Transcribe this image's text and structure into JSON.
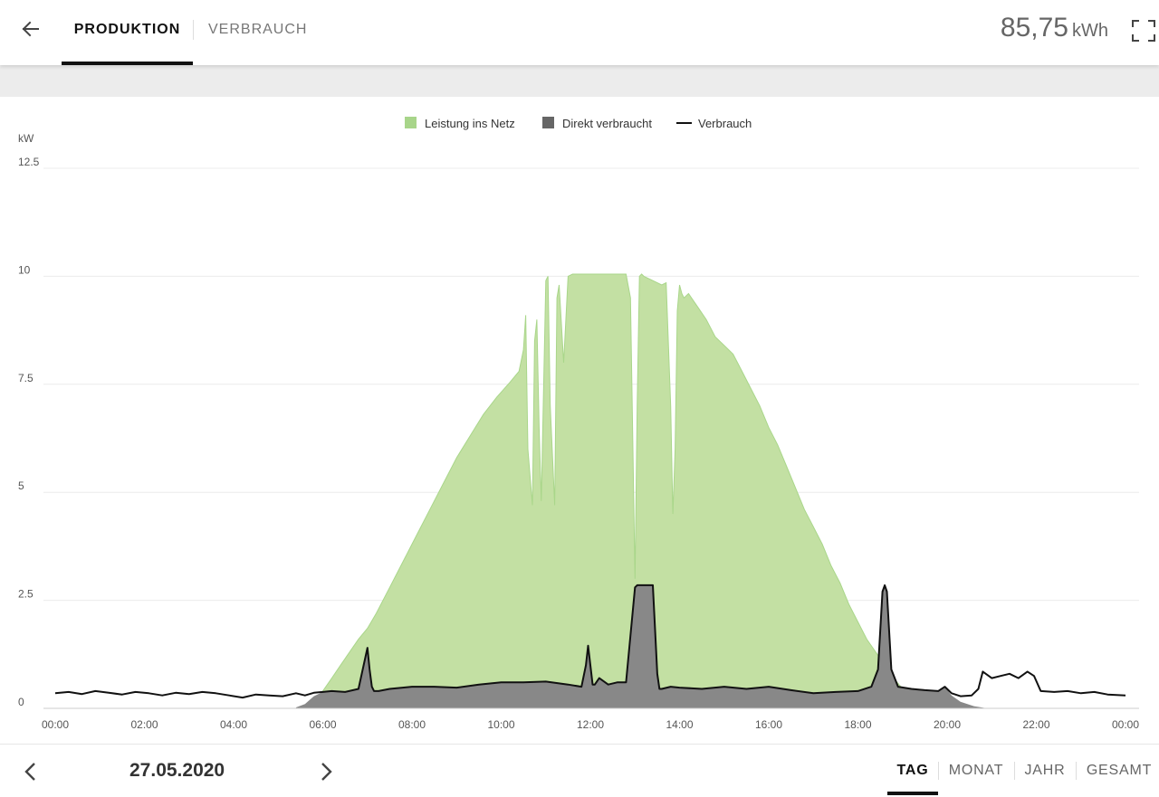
{
  "header": {
    "tabs": [
      {
        "label": "PRODUKTION",
        "active": true
      },
      {
        "label": "VERBRAUCH",
        "active": false
      }
    ],
    "total_value": "85,75",
    "total_unit": "kWh",
    "icons": {
      "back": "arrow-left-icon",
      "fullscreen": "fullscreen-icon"
    }
  },
  "footer": {
    "date": "27.05.2020",
    "period_tabs": [
      {
        "label": "TAG",
        "active": true
      },
      {
        "label": "MONAT",
        "active": false
      },
      {
        "label": "JAHR",
        "active": false
      },
      {
        "label": "GESAMT",
        "active": false
      }
    ],
    "icons": {
      "prev": "chevron-left-icon",
      "next": "chevron-right-icon"
    }
  },
  "colors": {
    "production": "#c3e0a3",
    "production_line": "#a9d68a",
    "direct": "#888888",
    "consumption": "#111111",
    "legend_green": "#a8d58a",
    "legend_grey": "#666666"
  },
  "chart_data": {
    "type": "area",
    "ylabel": "kW",
    "ylim": [
      0,
      12.5
    ],
    "yticks": [
      "0",
      "2.5",
      "5",
      "7.5",
      "10",
      "12.5"
    ],
    "xlim": [
      0,
      24
    ],
    "xticks": [
      "00:00",
      "02:00",
      "04:00",
      "06:00",
      "08:00",
      "10:00",
      "12:00",
      "14:00",
      "16:00",
      "18:00",
      "20:00",
      "22:00",
      "00:00"
    ],
    "legend": [
      "Leistung ins Netz",
      "Direkt verbraucht",
      "Verbrauch"
    ],
    "legend_position": "top-center",
    "grid": true,
    "series": [
      {
        "name": "Leistung ins Netz",
        "style": "area",
        "x": [
          5.9,
          6.0,
          6.2,
          6.4,
          6.6,
          6.8,
          7.0,
          7.2,
          7.5,
          7.8,
          8.1,
          8.4,
          8.7,
          9.0,
          9.3,
          9.6,
          9.9,
          10.2,
          10.4,
          10.5,
          10.55,
          10.6,
          10.7,
          10.75,
          10.8,
          10.85,
          10.9,
          11.0,
          11.05,
          11.1,
          11.2,
          11.25,
          11.3,
          11.4,
          11.5,
          11.6,
          11.7,
          12.0,
          12.5,
          12.8,
          12.9,
          13.0,
          13.05,
          13.1,
          13.15,
          13.2,
          13.4,
          13.6,
          13.7,
          13.8,
          13.85,
          13.9,
          13.95,
          14.0,
          14.05,
          14.1,
          14.2,
          14.4,
          14.6,
          14.8,
          15.0,
          15.2,
          15.4,
          15.6,
          15.8,
          16.0,
          16.2,
          16.4,
          16.6,
          16.8,
          17.0,
          17.2,
          17.4,
          17.6,
          17.8,
          18.0,
          18.2,
          18.4,
          18.6,
          18.8,
          19.0,
          19.2,
          19.4,
          19.6,
          19.8,
          20.0
        ],
        "y": [
          0.2,
          0.4,
          0.7,
          1.0,
          1.3,
          1.6,
          1.85,
          2.2,
          2.8,
          3.4,
          4.0,
          4.6,
          5.2,
          5.8,
          6.3,
          6.8,
          7.2,
          7.55,
          7.8,
          8.3,
          9.1,
          6.0,
          4.7,
          8.5,
          9.0,
          6.5,
          4.8,
          9.9,
          10.0,
          7.0,
          4.7,
          9.5,
          9.8,
          8.0,
          10.0,
          10.05,
          10.05,
          10.05,
          10.05,
          10.05,
          9.5,
          3.0,
          7.0,
          10.0,
          10.05,
          10.0,
          9.9,
          9.8,
          9.85,
          7.0,
          4.5,
          6.0,
          9.2,
          9.8,
          9.6,
          9.5,
          9.6,
          9.3,
          9.0,
          8.6,
          8.4,
          8.2,
          7.8,
          7.4,
          7.0,
          6.5,
          6.1,
          5.6,
          5.1,
          4.6,
          4.2,
          3.8,
          3.3,
          2.9,
          2.4,
          2.0,
          1.6,
          1.3,
          1.0,
          0.7,
          0.45,
          0.25,
          0.12,
          0.05,
          0.02,
          0.0
        ]
      },
      {
        "name": "Direkt verbraucht",
        "style": "area",
        "x": [
          5.4,
          5.6,
          5.8,
          6.0,
          6.2,
          6.5,
          6.8,
          7.0,
          7.05,
          7.1,
          7.15,
          7.25,
          7.5,
          8.0,
          8.5,
          9.0,
          9.5,
          10.0,
          10.5,
          11.0,
          11.5,
          11.8,
          11.9,
          11.95,
          12.0,
          12.05,
          12.1,
          12.2,
          12.4,
          12.6,
          12.8,
          13.0,
          13.05,
          13.1,
          13.2,
          13.3,
          13.4,
          13.5,
          13.55,
          13.6,
          13.8,
          14.0,
          14.5,
          15.0,
          15.5,
          16.0,
          16.5,
          17.0,
          17.5,
          18.0,
          18.3,
          18.45,
          18.55,
          18.6,
          18.65,
          18.75,
          18.9,
          19.2,
          19.5,
          19.8,
          19.95,
          20.1,
          20.3,
          20.6,
          20.9
        ],
        "y": [
          0.02,
          0.1,
          0.28,
          0.38,
          0.4,
          0.38,
          0.45,
          1.4,
          0.9,
          0.5,
          0.4,
          0.4,
          0.45,
          0.5,
          0.5,
          0.48,
          0.55,
          0.6,
          0.6,
          0.62,
          0.55,
          0.5,
          1.0,
          1.45,
          1.0,
          0.55,
          0.55,
          0.7,
          0.55,
          0.6,
          0.6,
          2.8,
          2.85,
          2.85,
          2.85,
          2.85,
          2.85,
          0.8,
          0.45,
          0.45,
          0.5,
          0.48,
          0.45,
          0.5,
          0.45,
          0.5,
          0.42,
          0.35,
          0.38,
          0.4,
          0.5,
          0.9,
          2.7,
          2.85,
          2.7,
          0.9,
          0.5,
          0.45,
          0.42,
          0.4,
          0.5,
          0.3,
          0.15,
          0.05,
          0.0
        ]
      },
      {
        "name": "Verbrauch",
        "style": "line",
        "x": [
          0.0,
          0.3,
          0.6,
          0.9,
          1.2,
          1.5,
          1.8,
          2.1,
          2.4,
          2.7,
          3.0,
          3.3,
          3.6,
          3.9,
          4.2,
          4.5,
          4.8,
          5.1,
          5.4,
          5.6,
          5.8,
          6.0,
          6.2,
          6.5,
          6.8,
          7.0,
          7.05,
          7.1,
          7.15,
          7.25,
          7.5,
          8.0,
          8.5,
          9.0,
          9.5,
          10.0,
          10.5,
          11.0,
          11.5,
          11.8,
          11.9,
          11.95,
          12.0,
          12.05,
          12.1,
          12.2,
          12.4,
          12.6,
          12.8,
          13.0,
          13.05,
          13.1,
          13.2,
          13.3,
          13.4,
          13.5,
          13.55,
          13.6,
          13.8,
          14.0,
          14.5,
          15.0,
          15.5,
          16.0,
          16.5,
          17.0,
          17.5,
          18.0,
          18.3,
          18.45,
          18.55,
          18.6,
          18.65,
          18.75,
          18.9,
          19.2,
          19.5,
          19.8,
          19.95,
          20.1,
          20.3,
          20.55,
          20.7,
          20.8,
          21.0,
          21.2,
          21.4,
          21.6,
          21.8,
          21.95,
          22.1,
          22.4,
          22.7,
          23.0,
          23.3,
          23.6,
          24.0
        ],
        "y": [
          0.35,
          0.38,
          0.33,
          0.4,
          0.36,
          0.32,
          0.38,
          0.35,
          0.3,
          0.36,
          0.33,
          0.38,
          0.35,
          0.3,
          0.25,
          0.32,
          0.3,
          0.28,
          0.35,
          0.3,
          0.36,
          0.38,
          0.4,
          0.38,
          0.45,
          1.4,
          0.9,
          0.5,
          0.4,
          0.4,
          0.45,
          0.5,
          0.5,
          0.48,
          0.55,
          0.6,
          0.6,
          0.62,
          0.55,
          0.5,
          1.0,
          1.45,
          1.0,
          0.55,
          0.55,
          0.7,
          0.55,
          0.6,
          0.6,
          2.8,
          2.85,
          2.85,
          2.85,
          2.85,
          2.85,
          0.8,
          0.45,
          0.45,
          0.5,
          0.48,
          0.45,
          0.5,
          0.45,
          0.5,
          0.42,
          0.35,
          0.38,
          0.4,
          0.5,
          0.9,
          2.7,
          2.85,
          2.7,
          0.9,
          0.5,
          0.45,
          0.42,
          0.4,
          0.5,
          0.35,
          0.28,
          0.3,
          0.45,
          0.85,
          0.7,
          0.75,
          0.8,
          0.7,
          0.85,
          0.75,
          0.4,
          0.38,
          0.4,
          0.35,
          0.38,
          0.32,
          0.3
        ]
      }
    ]
  }
}
